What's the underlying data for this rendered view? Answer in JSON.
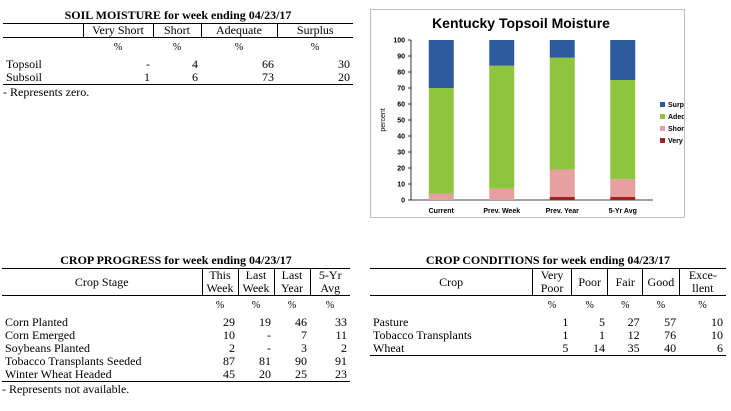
{
  "soil_moisture": {
    "title": "SOIL MOISTURE for week ending 04/23/17",
    "columns": [
      "Very Short",
      "Short",
      "Adequate",
      "Surplus"
    ],
    "unit": "%",
    "rows": [
      {
        "label": "Topsoil",
        "values": [
          "-",
          "4",
          "66",
          "30"
        ]
      },
      {
        "label": "Subsoil",
        "values": [
          "1",
          "6",
          "73",
          "20"
        ]
      }
    ],
    "footnote": "- Represents zero."
  },
  "chart_data": {
    "type": "bar",
    "stacked": true,
    "title": "Kentucky Topsoil Moisture",
    "ylabel": "percent",
    "ylim": [
      0,
      100
    ],
    "yticks": [
      0,
      10,
      20,
      30,
      40,
      50,
      60,
      70,
      80,
      90,
      100
    ],
    "categories": [
      "Current",
      "Prev. Week",
      "Prev. Year",
      "5-Yr Avg"
    ],
    "legend_position": "right",
    "series": [
      {
        "name": "Very Short",
        "color": "#a32020",
        "values": [
          0,
          0,
          2,
          2
        ]
      },
      {
        "name": "Short",
        "color": "#e6a0a0",
        "values": [
          4,
          7,
          17,
          11
        ]
      },
      {
        "name": "Adequate",
        "color": "#8fc43f",
        "values": [
          66,
          77,
          70,
          62
        ]
      },
      {
        "name": "Surplus",
        "color": "#2e5aa0",
        "values": [
          30,
          16,
          11,
          25
        ]
      }
    ],
    "legend_order": [
      "Surplus",
      "Adequate",
      "Short",
      "Very Short"
    ]
  },
  "crop_progress": {
    "title": "CROP PROGRESS for week ending 04/23/17",
    "stage_header": "Crop Stage",
    "columns": [
      [
        "This",
        "Week"
      ],
      [
        "Last",
        "Week"
      ],
      [
        "Last",
        "Year"
      ],
      [
        "5-Yr",
        "Avg"
      ]
    ],
    "unit": "%",
    "rows": [
      {
        "label": "Corn Planted",
        "values": [
          "29",
          "19",
          "46",
          "33"
        ]
      },
      {
        "label": "Corn Emerged",
        "values": [
          "10",
          "-",
          "7",
          "11"
        ]
      },
      {
        "label": "Soybeans Planted",
        "values": [
          "2",
          "-",
          "3",
          "2"
        ]
      },
      {
        "label": "Tobacco Transplants Seeded",
        "values": [
          "87",
          "81",
          "90",
          "91"
        ]
      },
      {
        "label": "Winter Wheat Headed",
        "values": [
          "45",
          "20",
          "25",
          "23"
        ]
      }
    ],
    "footnote": "- Represents not available."
  },
  "crop_conditions": {
    "title": "CROP CONDITIONS for week ending 04/23/17",
    "crop_header": "Crop",
    "columns": [
      [
        "Very",
        "Poor"
      ],
      [
        "Poor",
        ""
      ],
      [
        "Fair",
        ""
      ],
      [
        "Good",
        ""
      ],
      [
        "Exce-",
        "llent"
      ]
    ],
    "unit": "%",
    "rows": [
      {
        "label": "Pasture",
        "values": [
          "1",
          "5",
          "27",
          "57",
          "10"
        ]
      },
      {
        "label": "Tobacco Transplants",
        "values": [
          "1",
          "1",
          "12",
          "76",
          "10"
        ]
      },
      {
        "label": "Wheat",
        "values": [
          "5",
          "14",
          "35",
          "40",
          "6"
        ]
      }
    ]
  }
}
